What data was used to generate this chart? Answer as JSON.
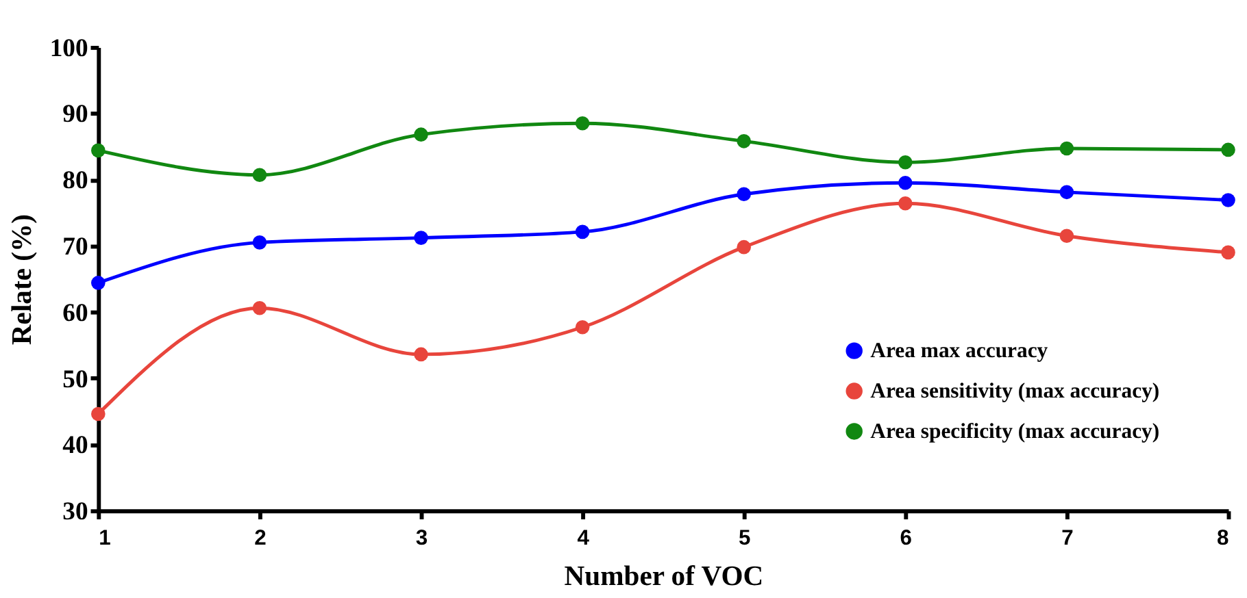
{
  "chart_data": {
    "type": "line",
    "xlabel": "Number of VOC",
    "ylabel": "Relate (%)",
    "x": [
      1,
      2,
      3,
      4,
      5,
      6,
      7,
      8
    ],
    "xlim": [
      1,
      8
    ],
    "xticks": [
      1,
      2,
      3,
      4,
      5,
      6,
      7,
      8
    ],
    "ylim": [
      30,
      100
    ],
    "yticks": [
      30,
      40,
      50,
      60,
      70,
      80,
      90,
      100
    ],
    "grid": false,
    "legend": "bottom right",
    "marker": "circle",
    "line_style": "solid",
    "series": [
      {
        "name": "Area max accuracy",
        "color": "#0000ff",
        "values": [
          64.4,
          70.5,
          71.2,
          72.1,
          77.8,
          79.5,
          78.1,
          76.9
        ]
      },
      {
        "name": "Area sensitivity (max accuracy)",
        "color": "#e8453c",
        "values": [
          44.6,
          60.6,
          53.6,
          57.7,
          69.8,
          76.4,
          71.5,
          69.0
        ]
      },
      {
        "name": "Area specificity (max accuracy)",
        "color": "#118811",
        "values": [
          84.4,
          80.7,
          86.8,
          88.5,
          85.8,
          82.6,
          84.7,
          84.5
        ]
      }
    ]
  }
}
